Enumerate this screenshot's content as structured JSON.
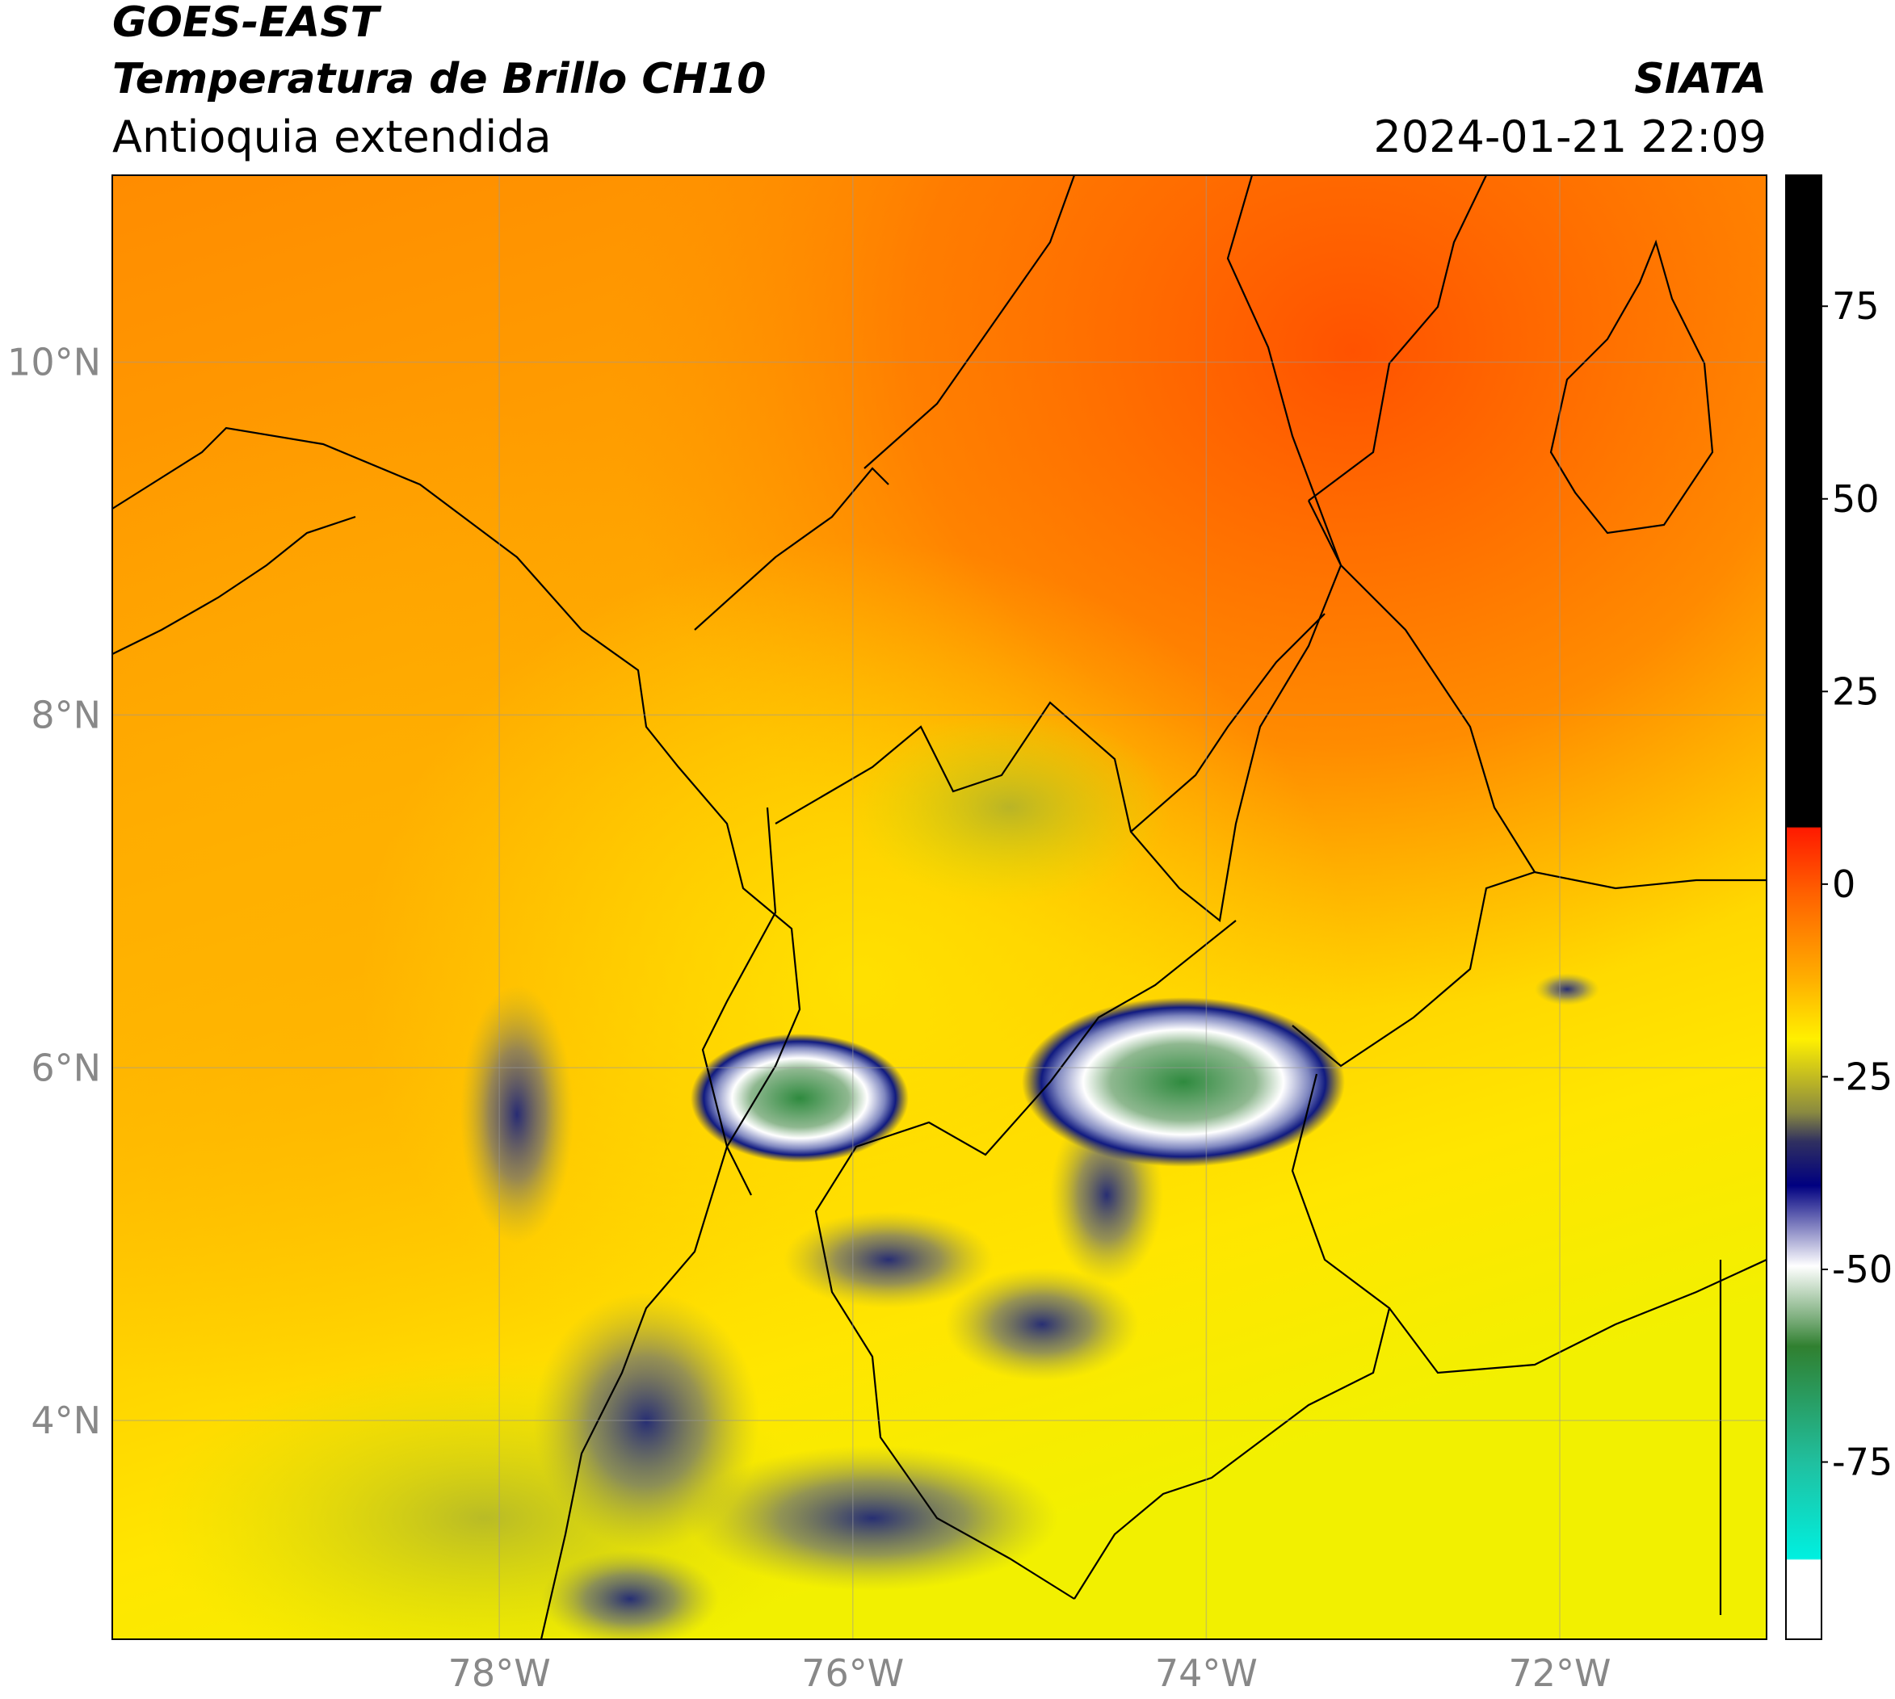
{
  "header": {
    "title": "GOES-EAST",
    "subtitle": "Temperatura de Brillo CH10",
    "region": "Antioquia extendida",
    "source": "SIATA",
    "datetime": "2024-01-21 22:09"
  },
  "map": {
    "latlim": [
      2.76,
      11.06
    ],
    "lonlim": [
      -80.19,
      -70.83
    ],
    "grid": true,
    "lat_ticks": [
      {
        "value": 10,
        "label": "10°N"
      },
      {
        "value": 8,
        "label": "8°N"
      },
      {
        "value": 6,
        "label": "6°N"
      },
      {
        "value": 4,
        "label": "4°N"
      }
    ],
    "lon_ticks": [
      {
        "value": -78,
        "label": "78°W"
      },
      {
        "value": -76,
        "label": "76°W"
      },
      {
        "value": -74,
        "label": "74°W"
      },
      {
        "value": -72,
        "label": "72°W"
      }
    ]
  },
  "colorbar": {
    "lim": [
      -98,
      92
    ],
    "ticks": [
      75,
      50,
      25,
      0,
      -25,
      -50,
      -75
    ]
  }
}
